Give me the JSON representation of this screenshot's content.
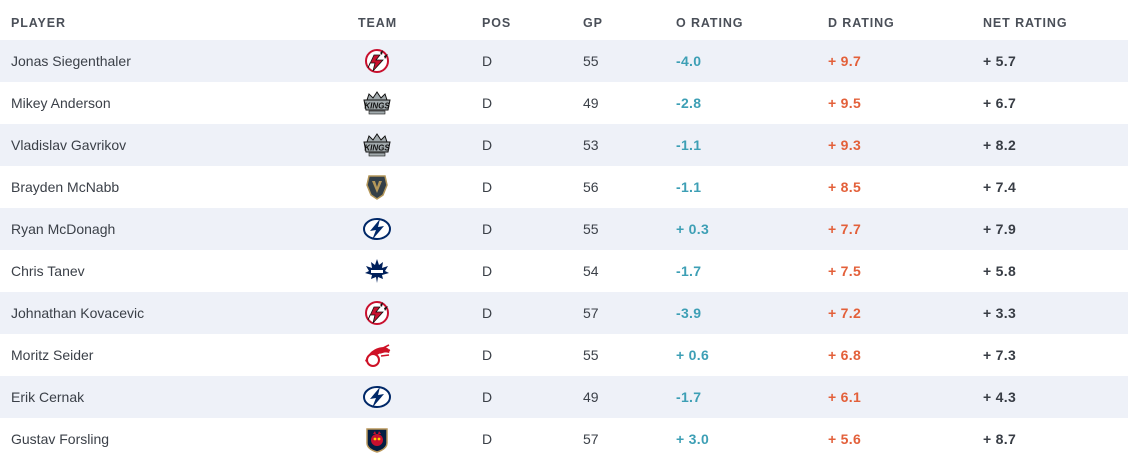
{
  "headers": {
    "player": "PLAYER",
    "team": "TEAM",
    "pos": "POS",
    "gp": "GP",
    "o_rating": "O RATING",
    "d_rating": "D RATING",
    "net_rating": "NET RATING"
  },
  "rows": [
    {
      "player": "Jonas Siegenthaler",
      "team_icon": "devils-logo-icon",
      "pos": "D",
      "gp": "55",
      "o": "-4.0",
      "d": "+ 9.7",
      "net": "+ 5.7"
    },
    {
      "player": "Mikey Anderson",
      "team_icon": "kings-logo-icon",
      "pos": "D",
      "gp": "49",
      "o": "-2.8",
      "d": "+ 9.5",
      "net": "+ 6.7"
    },
    {
      "player": "Vladislav Gavrikov",
      "team_icon": "kings-logo-icon",
      "pos": "D",
      "gp": "53",
      "o": "-1.1",
      "d": "+ 9.3",
      "net": "+ 8.2"
    },
    {
      "player": "Brayden McNabb",
      "team_icon": "golden-knights-logo-icon",
      "pos": "D",
      "gp": "56",
      "o": "-1.1",
      "d": "+ 8.5",
      "net": "+ 7.4"
    },
    {
      "player": "Ryan McDonagh",
      "team_icon": "lightning-logo-icon",
      "pos": "D",
      "gp": "55",
      "o": "+ 0.3",
      "d": "+ 7.7",
      "net": "+ 7.9"
    },
    {
      "player": "Chris Tanev",
      "team_icon": "maple-leafs-logo-icon",
      "pos": "D",
      "gp": "54",
      "o": "-1.7",
      "d": "+ 7.5",
      "net": "+ 5.8"
    },
    {
      "player": "Johnathan Kovacevic",
      "team_icon": "devils-logo-icon",
      "pos": "D",
      "gp": "57",
      "o": "-3.9",
      "d": "+ 7.2",
      "net": "+ 3.3"
    },
    {
      "player": "Moritz Seider",
      "team_icon": "red-wings-logo-icon",
      "pos": "D",
      "gp": "55",
      "o": "+ 0.6",
      "d": "+ 6.8",
      "net": "+ 7.3"
    },
    {
      "player": "Erik Cernak",
      "team_icon": "lightning-logo-icon",
      "pos": "D",
      "gp": "49",
      "o": "-1.7",
      "d": "+ 6.1",
      "net": "+ 4.3"
    },
    {
      "player": "Gustav Forsling",
      "team_icon": "panthers-logo-icon",
      "pos": "D",
      "gp": "57",
      "o": "+ 3.0",
      "d": "+ 5.6",
      "net": "+ 8.7"
    }
  ],
  "colors": {
    "o_rating": "#3d9fb5",
    "d_rating": "#e3603a",
    "net_rating": "#383d45",
    "row_shade": "#eef1f8"
  }
}
